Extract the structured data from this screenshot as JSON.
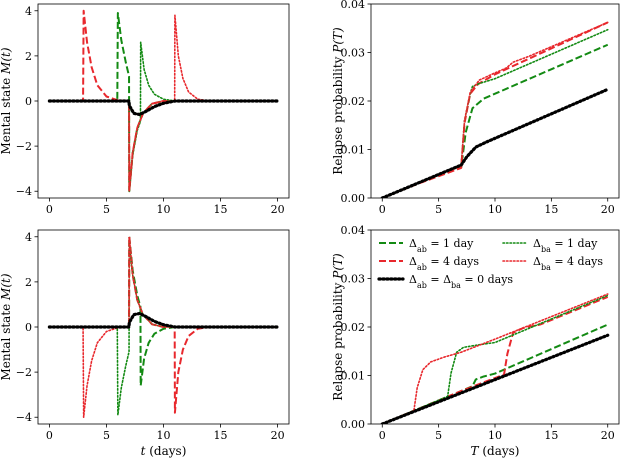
{
  "colors": {
    "green": "#138a13",
    "red": "#e8282d",
    "black": "#000000"
  },
  "legend": {
    "ab1": "Δab = 1 day",
    "ba1": "Δba = 1 day",
    "ab4": "Δab = 4 days",
    "ba4": "Δba = 4 days",
    "zero": "Δab = Δba = 0 days"
  },
  "chart_data": [
    {
      "type": "line",
      "panel": "top-left",
      "xlabel": "",
      "ylabel": "Mental state M(t)",
      "xlim": [
        -1,
        21
      ],
      "ylim": [
        -4.3,
        4.3
      ],
      "xticks": [
        0,
        5,
        10,
        15,
        20
      ],
      "yticks": [
        -4,
        -2,
        0,
        2,
        4
      ],
      "ytick_labels": [
        "−4",
        "−2",
        "0",
        "2",
        "4"
      ],
      "series": [
        {
          "key": "ab1",
          "color": "green",
          "style": "dashed",
          "x": [
            0,
            5.95,
            6.0,
            6.3,
            6.7,
            6.98,
            7.0,
            7.3,
            7.7,
            8.2,
            9,
            10,
            20
          ],
          "y": [
            0,
            0,
            3.9,
            2.7,
            1.7,
            1.1,
            -4.0,
            -2.3,
            -1.2,
            -0.55,
            -0.12,
            0,
            0
          ]
        },
        {
          "key": "ab4",
          "color": "red",
          "style": "dashed",
          "x": [
            0,
            2.95,
            3.0,
            3.3,
            3.7,
            4.2,
            5.0,
            6.0,
            6.98,
            7.0,
            7.3,
            7.7,
            8.2,
            9,
            10,
            20
          ],
          "y": [
            0,
            0,
            4.0,
            2.6,
            1.5,
            0.7,
            0.2,
            0.03,
            0,
            -4.0,
            -2.3,
            -1.2,
            -0.55,
            -0.12,
            0,
            0
          ]
        },
        {
          "key": "ba1",
          "color": "green",
          "style": "dotted",
          "x": [
            0,
            6.98,
            7.0,
            7.3,
            7.7,
            7.98,
            8.0,
            8.3,
            8.7,
            9.2,
            10,
            11,
            20
          ],
          "y": [
            0,
            0,
            -4.0,
            -2.4,
            -1.3,
            -0.9,
            2.6,
            1.4,
            0.7,
            0.3,
            0.08,
            0,
            0
          ]
        },
        {
          "key": "ba4",
          "color": "red",
          "style": "dotted",
          "x": [
            0,
            6.98,
            7.0,
            7.3,
            7.7,
            8.2,
            9,
            10,
            10.98,
            11.0,
            11.3,
            11.7,
            12.2,
            13,
            14,
            20
          ],
          "y": [
            0,
            0,
            -4.0,
            -2.3,
            -1.2,
            -0.55,
            -0.12,
            0,
            0,
            3.8,
            2.0,
            1.0,
            0.4,
            0.08,
            0,
            0
          ]
        },
        {
          "key": "zero",
          "color": "black",
          "style": "dotted-bold",
          "x": [
            0,
            6.98,
            7.0,
            7.4,
            7.9,
            8.5,
            9.2,
            10,
            11,
            20
          ],
          "y": [
            0,
            0,
            -0.2,
            -0.55,
            -0.6,
            -0.45,
            -0.25,
            -0.1,
            0,
            0
          ]
        }
      ]
    },
    {
      "type": "line",
      "panel": "top-right",
      "xlabel": "",
      "ylabel": "Relapse probability P(T)",
      "xlim": [
        -1,
        21
      ],
      "ylim": [
        0,
        0.04
      ],
      "xticks": [
        0,
        5,
        10,
        15,
        20
      ],
      "yticks": [
        0.0,
        0.01,
        0.02,
        0.03,
        0.04
      ],
      "ytick_labels": [
        "0.00",
        "0.01",
        "0.02",
        "0.03",
        "0.04"
      ],
      "series": [
        {
          "key": "ab1",
          "color": "green",
          "style": "dashed",
          "x": [
            0,
            6.0,
            7.0,
            7.4,
            8.0,
            9.0,
            10,
            20
          ],
          "y": [
            0,
            0.0056,
            0.0063,
            0.0135,
            0.0185,
            0.0205,
            0.0215,
            0.0316
          ]
        },
        {
          "key": "ab4",
          "color": "red",
          "style": "dashed",
          "x": [
            0,
            3.0,
            7.0,
            7.3,
            7.8,
            8.5,
            10,
            20
          ],
          "y": [
            0,
            0.0028,
            0.0062,
            0.0155,
            0.0215,
            0.0235,
            0.0255,
            0.0362
          ]
        },
        {
          "key": "ba1",
          "color": "green",
          "style": "dotted",
          "x": [
            0,
            7.0,
            7.3,
            7.8,
            8.0,
            8.6,
            10,
            20
          ],
          "y": [
            0,
            0.0066,
            0.016,
            0.0215,
            0.023,
            0.0236,
            0.0246,
            0.0347
          ]
        },
        {
          "key": "ba4",
          "color": "red",
          "style": "dotted",
          "x": [
            0,
            7.0,
            7.3,
            7.8,
            8.6,
            10,
            11,
            11.6,
            13,
            20
          ],
          "y": [
            0,
            0.0066,
            0.016,
            0.0218,
            0.0243,
            0.0258,
            0.0268,
            0.028,
            0.0292,
            0.0362
          ]
        },
        {
          "key": "zero",
          "color": "black",
          "style": "dotted-bold",
          "x": [
            0,
            7.0,
            7.5,
            8.3,
            9.2,
            20
          ],
          "y": [
            0,
            0.0068,
            0.0085,
            0.0105,
            0.0115,
            0.0224
          ]
        }
      ]
    },
    {
      "type": "line",
      "panel": "bottom-left",
      "xlabel": "t (days)",
      "ylabel": "Mental state M(t)",
      "xlim": [
        -1,
        21
      ],
      "ylim": [
        -4.3,
        4.3
      ],
      "xticks": [
        0,
        5,
        10,
        15,
        20
      ],
      "yticks": [
        -4,
        -2,
        0,
        2,
        4
      ],
      "ytick_labels": [
        "−4",
        "−2",
        "0",
        "2",
        "4"
      ],
      "series": [
        {
          "key": "ab1",
          "color": "green",
          "style": "dashed",
          "x": [
            0,
            6.98,
            7.0,
            7.3,
            7.7,
            7.98,
            8.0,
            8.3,
            8.7,
            9.2,
            10,
            11,
            20
          ],
          "y": [
            0,
            0,
            4.0,
            2.5,
            1.4,
            0.9,
            -2.6,
            -1.4,
            -0.7,
            -0.3,
            -0.08,
            0,
            0
          ]
        },
        {
          "key": "ab4",
          "color": "red",
          "style": "dashed",
          "x": [
            0,
            6.98,
            7.0,
            7.3,
            7.7,
            8.2,
            9,
            10,
            10.98,
            11.0,
            11.3,
            11.7,
            12.2,
            13,
            14,
            20
          ],
          "y": [
            0,
            0,
            4.0,
            2.3,
            1.2,
            0.55,
            0.12,
            0,
            0,
            -3.8,
            -2.0,
            -1.0,
            -0.4,
            -0.08,
            0,
            0
          ]
        },
        {
          "key": "ba1",
          "color": "green",
          "style": "dotted",
          "x": [
            0,
            5.95,
            6.0,
            6.3,
            6.7,
            6.98,
            7.0,
            7.3,
            7.7,
            8.2,
            9,
            10,
            20
          ],
          "y": [
            0,
            0,
            -3.9,
            -2.7,
            -1.7,
            -1.1,
            3.7,
            2.3,
            1.2,
            0.55,
            0.12,
            0,
            0
          ]
        },
        {
          "key": "ba4",
          "color": "red",
          "style": "dotted",
          "x": [
            0,
            2.95,
            3.0,
            3.3,
            3.7,
            4.2,
            5.0,
            6.0,
            6.98,
            7.0,
            7.3,
            7.7,
            8.2,
            9,
            10,
            20
          ],
          "y": [
            0,
            0,
            -4.0,
            -2.6,
            -1.5,
            -0.7,
            -0.2,
            -0.03,
            0,
            4.0,
            2.3,
            1.2,
            0.55,
            0.12,
            0,
            0
          ]
        },
        {
          "key": "zero",
          "color": "black",
          "style": "dotted-bold",
          "x": [
            0,
            6.98,
            7.0,
            7.4,
            7.9,
            8.5,
            9.2,
            10,
            11,
            20
          ],
          "y": [
            0,
            0,
            0.2,
            0.55,
            0.6,
            0.45,
            0.25,
            0.1,
            0,
            0
          ]
        }
      ]
    },
    {
      "type": "line",
      "panel": "bottom-right",
      "xlabel": "T (days)",
      "ylabel": "Relapse probability P(T)",
      "xlim": [
        -1,
        21
      ],
      "ylim": [
        0,
        0.04
      ],
      "xticks": [
        0,
        5,
        10,
        15,
        20
      ],
      "yticks": [
        0.0,
        0.01,
        0.02,
        0.03,
        0.04
      ],
      "ytick_labels": [
        "0.00",
        "0.01",
        "0.02",
        "0.03",
        "0.04"
      ],
      "legend_position": "top-left",
      "series": [
        {
          "key": "ab1",
          "color": "green",
          "style": "dashed",
          "x": [
            0,
            7.0,
            8.0,
            8.3,
            9.0,
            10,
            20
          ],
          "y": [
            0,
            0.0068,
            0.0078,
            0.0092,
            0.0098,
            0.0104,
            0.0205
          ]
        },
        {
          "key": "ab4",
          "color": "red",
          "style": "dashed",
          "x": [
            0,
            7.0,
            10.8,
            11.1,
            11.6,
            12.5,
            14,
            20
          ],
          "y": [
            0,
            0.0068,
            0.0102,
            0.0145,
            0.0188,
            0.0198,
            0.0205,
            0.0262
          ]
        },
        {
          "key": "ba1",
          "color": "green",
          "style": "dotted",
          "x": [
            0,
            5.8,
            6.1,
            6.6,
            7.2,
            8.5,
            10,
            20
          ],
          "y": [
            0,
            0.0057,
            0.0105,
            0.0148,
            0.0158,
            0.0163,
            0.0168,
            0.0265
          ]
        },
        {
          "key": "ba4",
          "color": "red",
          "style": "dotted",
          "x": [
            0,
            2.8,
            3.1,
            3.6,
            4.3,
            5.5,
            7.0,
            10,
            20
          ],
          "y": [
            0,
            0.0027,
            0.0075,
            0.0112,
            0.0128,
            0.0138,
            0.0148,
            0.0175,
            0.0268
          ]
        },
        {
          "key": "zero",
          "color": "black",
          "style": "dotted-bold",
          "x": [
            0,
            20
          ],
          "y": [
            0,
            0.0183
          ]
        }
      ]
    }
  ]
}
